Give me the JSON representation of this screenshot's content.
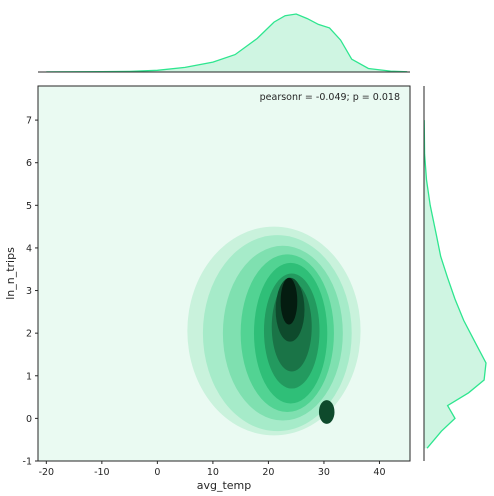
{
  "chart_data": {
    "type": "kde-jointplot",
    "annotation": "pearsonr = -0.049; p = 0.018",
    "xlabel": "avg_temp",
    "ylabel": "ln_n_trips",
    "xlim": [
      -21.5,
      45.5
    ],
    "ylim": [
      -1,
      7.8
    ],
    "xticks": [
      -20,
      -10,
      0,
      10,
      20,
      30,
      40
    ],
    "yticks": [
      -1,
      0,
      1,
      2,
      3,
      4,
      5,
      6,
      7
    ],
    "colors": {
      "accent": "#2ee68f",
      "marginal_fill": "#cff5e2",
      "background": "#eafaf2",
      "levels": [
        "#c9f2dc",
        "#a6ebc9",
        "#7fe0b0",
        "#52d393",
        "#2fbf78",
        "#239a5f",
        "#1a7447",
        "#0e4a2c",
        "#041c10"
      ]
    },
    "density_levels": [
      {
        "level": 1,
        "cx": 21.0,
        "cy": 2.05,
        "rx": 15.6,
        "ry": 2.45
      },
      {
        "level": 2,
        "cx": 21.6,
        "cy": 2.0,
        "rx": 13.4,
        "ry": 2.3
      },
      {
        "level": 3,
        "cx": 22.6,
        "cy": 2.0,
        "rx": 10.8,
        "ry": 2.05
      },
      {
        "level": 4,
        "cx": 23.4,
        "cy": 2.0,
        "rx": 8.4,
        "ry": 1.85
      },
      {
        "level": 5,
        "cx": 24.0,
        "cy": 2.0,
        "rx": 6.6,
        "ry": 1.65
      },
      {
        "level": 6,
        "cx": 24.2,
        "cy": 2.05,
        "rx": 5.0,
        "ry": 1.35
      },
      {
        "level": 7,
        "cx": 24.2,
        "cy": 2.15,
        "rx": 3.6,
        "ry": 1.05
      },
      {
        "level": 8,
        "cx": 23.9,
        "cy": 2.55,
        "rx": 2.6,
        "ry": 0.75
      },
      {
        "level": 9,
        "cx": 23.7,
        "cy": 2.75,
        "rx": 1.5,
        "ry": 0.55
      }
    ],
    "secondary_blob": {
      "cx": 30.5,
      "cy": 0.15,
      "rx": 1.4,
      "ry": 0.28
    },
    "x_marginal_density": [
      [
        -20,
        0.002
      ],
      [
        -15,
        0.004
      ],
      [
        -10,
        0.006
      ],
      [
        -5,
        0.01
      ],
      [
        0,
        0.03
      ],
      [
        5,
        0.08
      ],
      [
        10,
        0.17
      ],
      [
        14,
        0.3
      ],
      [
        18,
        0.58
      ],
      [
        21,
        0.86
      ],
      [
        23,
        0.97
      ],
      [
        25,
        1.0
      ],
      [
        27,
        0.92
      ],
      [
        29,
        0.82
      ],
      [
        31,
        0.76
      ],
      [
        33,
        0.55
      ],
      [
        35,
        0.22
      ],
      [
        38,
        0.06
      ],
      [
        42,
        0.015
      ],
      [
        45,
        0.003
      ]
    ],
    "y_marginal_density": [
      [
        -0.7,
        0.05
      ],
      [
        -0.3,
        0.28
      ],
      [
        0.0,
        0.5
      ],
      [
        0.3,
        0.38
      ],
      [
        0.6,
        0.72
      ],
      [
        0.9,
        0.97
      ],
      [
        1.3,
        1.0
      ],
      [
        1.8,
        0.82
      ],
      [
        2.3,
        0.64
      ],
      [
        2.8,
        0.5
      ],
      [
        3.3,
        0.38
      ],
      [
        3.8,
        0.27
      ],
      [
        4.3,
        0.2
      ],
      [
        5.0,
        0.1
      ],
      [
        5.6,
        0.04
      ],
      [
        6.2,
        0.01
      ],
      [
        7.0,
        0.003
      ]
    ]
  }
}
